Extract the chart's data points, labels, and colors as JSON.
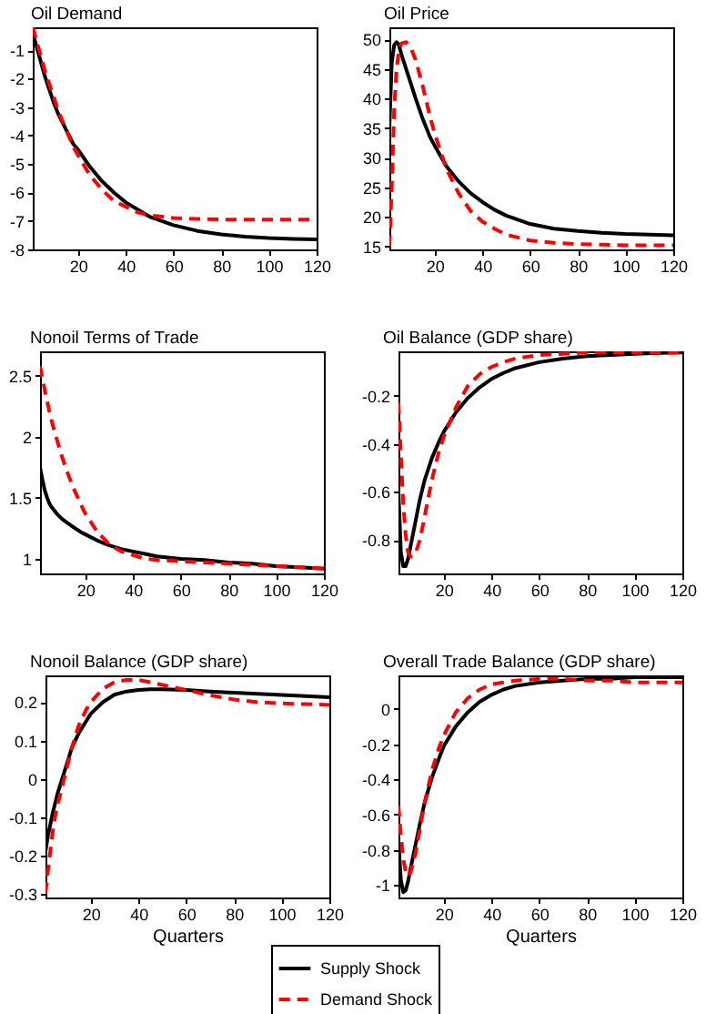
{
  "chart_data": [
    {
      "type": "line",
      "title": "Oil Demand",
      "xlim": [
        1,
        120
      ],
      "xticks": [
        20,
        40,
        60,
        80,
        100,
        120
      ],
      "ylim": [
        -8,
        -0.2
      ],
      "yticks": [
        -8,
        -7,
        -6,
        -5,
        -4,
        -3,
        -2,
        -1
      ],
      "grid": false,
      "series": [
        {
          "color": "#000000",
          "line_style": "solid",
          "x": [
            1,
            2,
            3,
            4,
            5,
            6,
            8,
            10,
            12,
            15,
            18,
            20,
            25,
            30,
            35,
            40,
            45,
            50,
            60,
            70,
            80,
            90,
            100,
            110,
            120
          ],
          "values": [
            -0.4,
            -0.7,
            -1.0,
            -1.3,
            -1.6,
            -1.9,
            -2.4,
            -2.9,
            -3.3,
            -3.8,
            -4.3,
            -4.5,
            -5.1,
            -5.6,
            -6.0,
            -6.35,
            -6.6,
            -6.85,
            -7.15,
            -7.35,
            -7.47,
            -7.55,
            -7.6,
            -7.63,
            -7.65
          ]
        },
        {
          "color": "#ff0000",
          "line_style": "dashed",
          "x": [
            1,
            2,
            3,
            4,
            5,
            6,
            8,
            10,
            12,
            15,
            18,
            20,
            25,
            30,
            35,
            40,
            45,
            50,
            60,
            70,
            80,
            90,
            100,
            110,
            120
          ],
          "values": [
            -0.2,
            -0.5,
            -0.8,
            -1.1,
            -1.4,
            -1.7,
            -2.2,
            -2.7,
            -3.2,
            -3.8,
            -4.4,
            -4.7,
            -5.4,
            -5.9,
            -6.3,
            -6.5,
            -6.7,
            -6.8,
            -6.9,
            -6.93,
            -6.95,
            -6.95,
            -6.95,
            -6.95,
            -6.95
          ]
        }
      ]
    },
    {
      "type": "line",
      "title": "Oil Price",
      "xlim": [
        1,
        120
      ],
      "xticks": [
        20,
        40,
        60,
        80,
        100,
        120
      ],
      "ylim": [
        14.5,
        52
      ],
      "yticks": [
        15,
        20,
        25,
        30,
        35,
        40,
        45,
        50
      ],
      "grid": false,
      "series": [
        {
          "color": "#000000",
          "line_style": "solid",
          "x": [
            1,
            2,
            3,
            4,
            5,
            6,
            8,
            10,
            12,
            15,
            18,
            20,
            25,
            30,
            35,
            40,
            45,
            50,
            60,
            70,
            80,
            90,
            100,
            110,
            120
          ],
          "values": [
            35,
            46,
            49,
            49.5,
            49,
            47.5,
            45,
            42.5,
            40,
            36.5,
            33.5,
            32,
            28.5,
            26,
            24,
            22.5,
            21.2,
            20.2,
            18.8,
            18,
            17.6,
            17.3,
            17.1,
            17,
            16.9
          ]
        },
        {
          "color": "#ff0000",
          "line_style": "dashed",
          "x": [
            1,
            2,
            3,
            4,
            5,
            6,
            8,
            10,
            12,
            15,
            18,
            20,
            25,
            30,
            35,
            40,
            45,
            50,
            60,
            70,
            80,
            90,
            100,
            110,
            120
          ],
          "values": [
            15,
            25,
            38,
            45,
            48,
            49.3,
            49.5,
            48.5,
            46.5,
            42,
            37,
            34,
            28,
            24,
            21,
            19.2,
            18,
            17,
            16,
            15.6,
            15.4,
            15.3,
            15.2,
            15.2,
            15.2
          ]
        }
      ]
    },
    {
      "type": "line",
      "title": "Nonoil Terms of Trade",
      "xlim": [
        1,
        120
      ],
      "xticks": [
        20,
        40,
        60,
        80,
        100,
        120
      ],
      "ylim": [
        0.88,
        2.7
      ],
      "yticks": [
        1,
        1.5,
        2,
        2.5
      ],
      "grid": false,
      "series": [
        {
          "color": "#000000",
          "line_style": "solid",
          "x": [
            1,
            2,
            3,
            4,
            5,
            6,
            8,
            10,
            12,
            15,
            18,
            20,
            25,
            30,
            35,
            40,
            45,
            50,
            60,
            70,
            80,
            90,
            100,
            110,
            120
          ],
          "values": [
            1.75,
            1.65,
            1.56,
            1.5,
            1.45,
            1.42,
            1.37,
            1.33,
            1.3,
            1.26,
            1.22,
            1.2,
            1.15,
            1.11,
            1.08,
            1.06,
            1.04,
            1.02,
            1.0,
            0.99,
            0.97,
            0.96,
            0.94,
            0.93,
            0.92
          ]
        },
        {
          "color": "#ff0000",
          "line_style": "dashed",
          "x": [
            1,
            2,
            3,
            4,
            5,
            6,
            8,
            10,
            12,
            15,
            18,
            20,
            25,
            30,
            35,
            40,
            45,
            50,
            60,
            70,
            80,
            90,
            100,
            110,
            120
          ],
          "values": [
            2.58,
            2.48,
            2.38,
            2.29,
            2.2,
            2.12,
            1.98,
            1.85,
            1.73,
            1.58,
            1.45,
            1.37,
            1.22,
            1.12,
            1.06,
            1.03,
            1.0,
            0.99,
            0.98,
            0.97,
            0.96,
            0.95,
            0.94,
            0.93,
            0.92
          ]
        }
      ]
    },
    {
      "type": "line",
      "title": "Oil Balance (GDP share)",
      "xlim": [
        1,
        120
      ],
      "xticks": [
        20,
        40,
        60,
        80,
        100,
        120
      ],
      "ylim": [
        -0.94,
        -0.015
      ],
      "yticks": [
        -0.8,
        -0.6,
        -0.4,
        -0.2
      ],
      "grid": false,
      "series": [
        {
          "color": "#000000",
          "line_style": "solid",
          "x": [
            1,
            2,
            3,
            4,
            5,
            6,
            8,
            10,
            12,
            15,
            18,
            20,
            25,
            30,
            35,
            40,
            45,
            50,
            60,
            70,
            80,
            90,
            100,
            110,
            120
          ],
          "values": [
            -0.6,
            -0.85,
            -0.91,
            -0.91,
            -0.88,
            -0.83,
            -0.73,
            -0.63,
            -0.55,
            -0.46,
            -0.39,
            -0.35,
            -0.27,
            -0.21,
            -0.165,
            -0.13,
            -0.105,
            -0.085,
            -0.06,
            -0.045,
            -0.035,
            -0.03,
            -0.025,
            -0.022,
            -0.02
          ]
        },
        {
          "color": "#ff0000",
          "line_style": "dashed",
          "x": [
            1,
            2,
            3,
            4,
            5,
            6,
            8,
            10,
            12,
            15,
            18,
            20,
            25,
            30,
            35,
            40,
            45,
            50,
            60,
            70,
            80,
            90,
            100,
            110,
            120
          ],
          "values": [
            -0.23,
            -0.45,
            -0.65,
            -0.78,
            -0.85,
            -0.87,
            -0.86,
            -0.8,
            -0.7,
            -0.55,
            -0.43,
            -0.37,
            -0.25,
            -0.16,
            -0.11,
            -0.08,
            -0.06,
            -0.045,
            -0.03,
            -0.025,
            -0.02,
            -0.02,
            -0.02,
            -0.02,
            -0.02
          ]
        }
      ]
    },
    {
      "type": "line",
      "title": "Nonoil Balance (GDP share)",
      "xlabel": "Quarters",
      "xlim": [
        1,
        120
      ],
      "xticks": [
        20,
        40,
        60,
        80,
        100,
        120
      ],
      "ylim": [
        -0.31,
        0.27
      ],
      "yticks": [
        -0.3,
        -0.2,
        -0.1,
        0,
        0.1,
        0.2
      ],
      "grid": false,
      "legend": "bottom",
      "series": [
        {
          "name": "Supply Shock",
          "color": "#000000",
          "line_style": "solid",
          "x": [
            1,
            2,
            3,
            4,
            5,
            6,
            8,
            10,
            12,
            15,
            18,
            20,
            25,
            30,
            35,
            40,
            45,
            50,
            60,
            70,
            80,
            90,
            100,
            110,
            120
          ],
          "values": [
            -0.19,
            -0.15,
            -0.12,
            -0.09,
            -0.065,
            -0.04,
            0,
            0.04,
            0.08,
            0.12,
            0.15,
            0.17,
            0.2,
            0.22,
            0.228,
            0.232,
            0.234,
            0.234,
            0.232,
            0.228,
            0.225,
            0.222,
            0.219,
            0.216,
            0.213
          ]
        },
        {
          "name": "Demand Shock",
          "color": "#ff0000",
          "line_style": "dashed",
          "x": [
            1,
            2,
            3,
            4,
            5,
            6,
            8,
            10,
            12,
            15,
            18,
            20,
            25,
            30,
            35,
            40,
            45,
            50,
            60,
            70,
            80,
            90,
            100,
            110,
            120
          ],
          "values": [
            -0.3,
            -0.24,
            -0.19,
            -0.14,
            -0.1,
            -0.07,
            -0.02,
            0.03,
            0.08,
            0.14,
            0.18,
            0.2,
            0.235,
            0.253,
            0.258,
            0.258,
            0.252,
            0.245,
            0.232,
            0.218,
            0.207,
            0.2,
            0.197,
            0.195,
            0.193
          ]
        }
      ]
    },
    {
      "type": "line",
      "title": "Overall Trade Balance (GDP share)",
      "xlabel": "Quarters",
      "xlim": [
        1,
        120
      ],
      "xticks": [
        20,
        40,
        60,
        80,
        100,
        120
      ],
      "ylim": [
        -1.07,
        0.19
      ],
      "yticks": [
        -1,
        -0.8,
        -0.6,
        -0.4,
        -0.2,
        0
      ],
      "grid": false,
      "series": [
        {
          "color": "#000000",
          "line_style": "solid",
          "x": [
            1,
            2,
            3,
            4,
            5,
            6,
            8,
            10,
            12,
            15,
            18,
            20,
            25,
            30,
            35,
            40,
            45,
            50,
            60,
            70,
            80,
            90,
            100,
            110,
            120
          ],
          "values": [
            -0.75,
            -0.97,
            -1.04,
            -1.03,
            -0.98,
            -0.91,
            -0.78,
            -0.65,
            -0.53,
            -0.39,
            -0.28,
            -0.21,
            -0.1,
            -0.02,
            0.04,
            0.08,
            0.11,
            0.13,
            0.15,
            0.16,
            0.17,
            0.17,
            0.18,
            0.18,
            0.18
          ]
        },
        {
          "color": "#ff0000",
          "line_style": "dashed",
          "x": [
            1,
            2,
            3,
            4,
            5,
            6,
            8,
            10,
            12,
            15,
            18,
            20,
            25,
            30,
            35,
            40,
            45,
            50,
            60,
            70,
            80,
            90,
            100,
            110,
            120
          ],
          "values": [
            -0.55,
            -0.72,
            -0.85,
            -0.92,
            -0.95,
            -0.93,
            -0.83,
            -0.68,
            -0.53,
            -0.35,
            -0.22,
            -0.15,
            -0.02,
            0.06,
            0.11,
            0.14,
            0.15,
            0.16,
            0.17,
            0.17,
            0.16,
            0.16,
            0.15,
            0.15,
            0.15
          ]
        }
      ]
    }
  ]
}
